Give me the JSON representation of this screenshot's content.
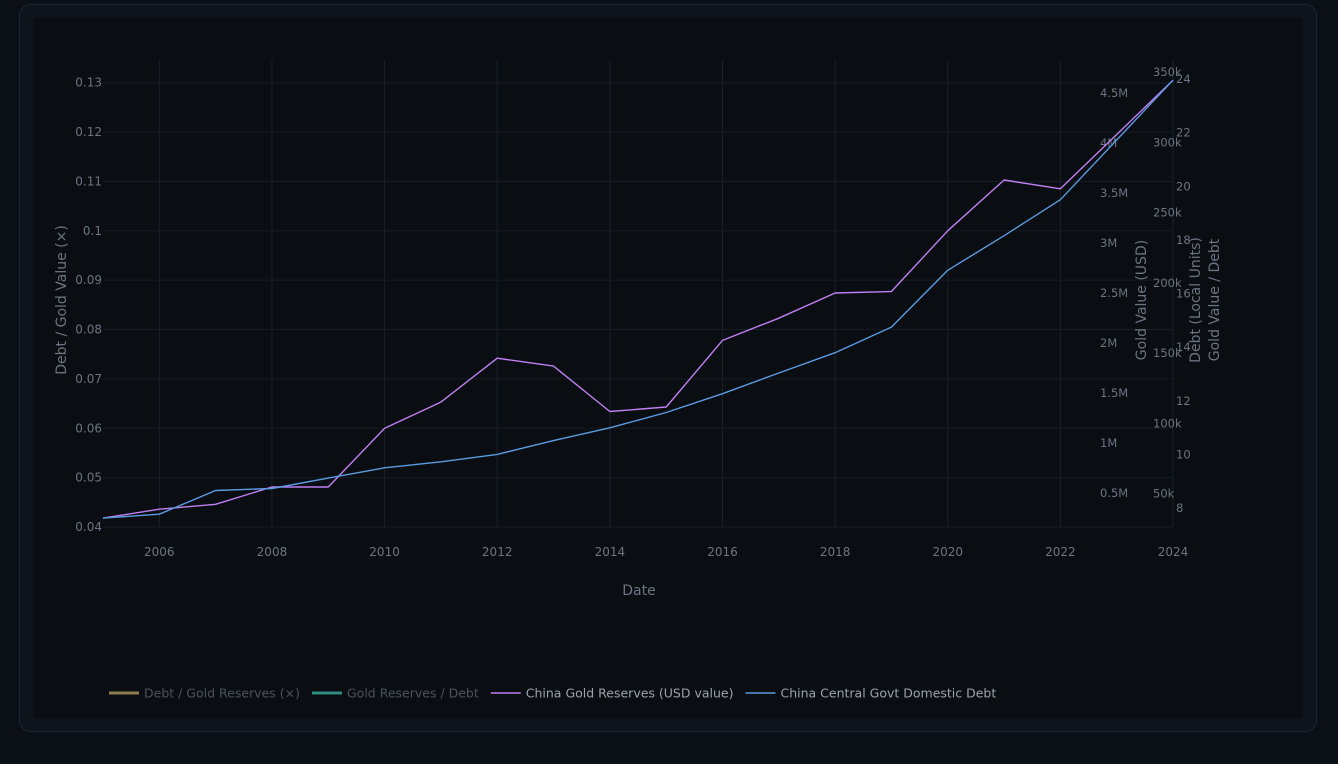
{
  "chart_data": {
    "type": "line",
    "xlabel": "Date",
    "x_ticks": [
      "2006",
      "2008",
      "2010",
      "2012",
      "2014",
      "2016",
      "2018",
      "2020",
      "2022",
      "2024"
    ],
    "x_range": [
      2005,
      2024
    ],
    "y_left": {
      "label": "Debt / Gold Value (×)",
      "ticks": [
        "0.04",
        "0.05",
        "0.06",
        "0.07",
        "0.08",
        "0.09",
        "0.1",
        "0.11",
        "0.12",
        "0.13"
      ],
      "range": [
        0.04,
        0.13
      ]
    },
    "y_right_gold_usd": {
      "label": "Gold Value (USD)",
      "ticks": [
        "0.5M",
        "1M",
        "1.5M",
        "2M",
        "2.5M",
        "3M",
        "3.5M",
        "4M",
        "4.5M"
      ],
      "range": [
        0,
        5000000
      ]
    },
    "y_right_debt": {
      "label": "Debt (Local Units)",
      "ticks": [
        "50k",
        "100k",
        "150k",
        "200k",
        "250k",
        "300k",
        "350k"
      ],
      "range": [
        0,
        350000
      ]
    },
    "y_right_ratio": {
      "label": "Gold Value / Debt",
      "ticks": [
        "8",
        "10",
        "12",
        "14",
        "16",
        "18",
        "20",
        "22",
        "24"
      ],
      "range": [
        8,
        24
      ]
    },
    "legend_position": "bottom-left",
    "series": [
      {
        "name": "Debt / Gold Reserves (×)",
        "color": "#8c7b4e",
        "hidden": true,
        "x": [],
        "values": []
      },
      {
        "name": "Gold Reserves / Debt",
        "color": "#2e8f7e",
        "hidden": true,
        "x": [],
        "values": []
      },
      {
        "name": "China Gold Reserves (USD value)",
        "color": "#c07ff2",
        "x": [
          2005,
          2006,
          2007,
          2008,
          2009,
          2010,
          2011,
          2012,
          2013,
          2014,
          2015,
          2016,
          2017,
          2018,
          2019,
          2020,
          2021,
          2022,
          2024
        ],
        "values": [
          0.0418,
          0.0436,
          0.0446,
          0.0481,
          0.0481,
          0.06,
          0.0653,
          0.0742,
          0.0726,
          0.0634,
          0.0643,
          0.0778,
          0.0823,
          0.0874,
          0.0877,
          0.1,
          0.1103,
          0.1085,
          0.1305
        ]
      },
      {
        "name": "China Central Govt Domestic Debt",
        "color": "#5b9be0",
        "x": [
          2005,
          2006,
          2007,
          2008,
          2009,
          2010,
          2011,
          2012,
          2013,
          2014,
          2015,
          2016,
          2017,
          2018,
          2019,
          2020,
          2021,
          2022,
          2024
        ],
        "values": [
          0.0418,
          0.0426,
          0.0474,
          0.0478,
          0.0499,
          0.052,
          0.0532,
          0.0547,
          0.0575,
          0.0601,
          0.0632,
          0.067,
          0.0712,
          0.0753,
          0.0805,
          0.092,
          0.099,
          0.1063,
          0.1305
        ]
      }
    ]
  }
}
